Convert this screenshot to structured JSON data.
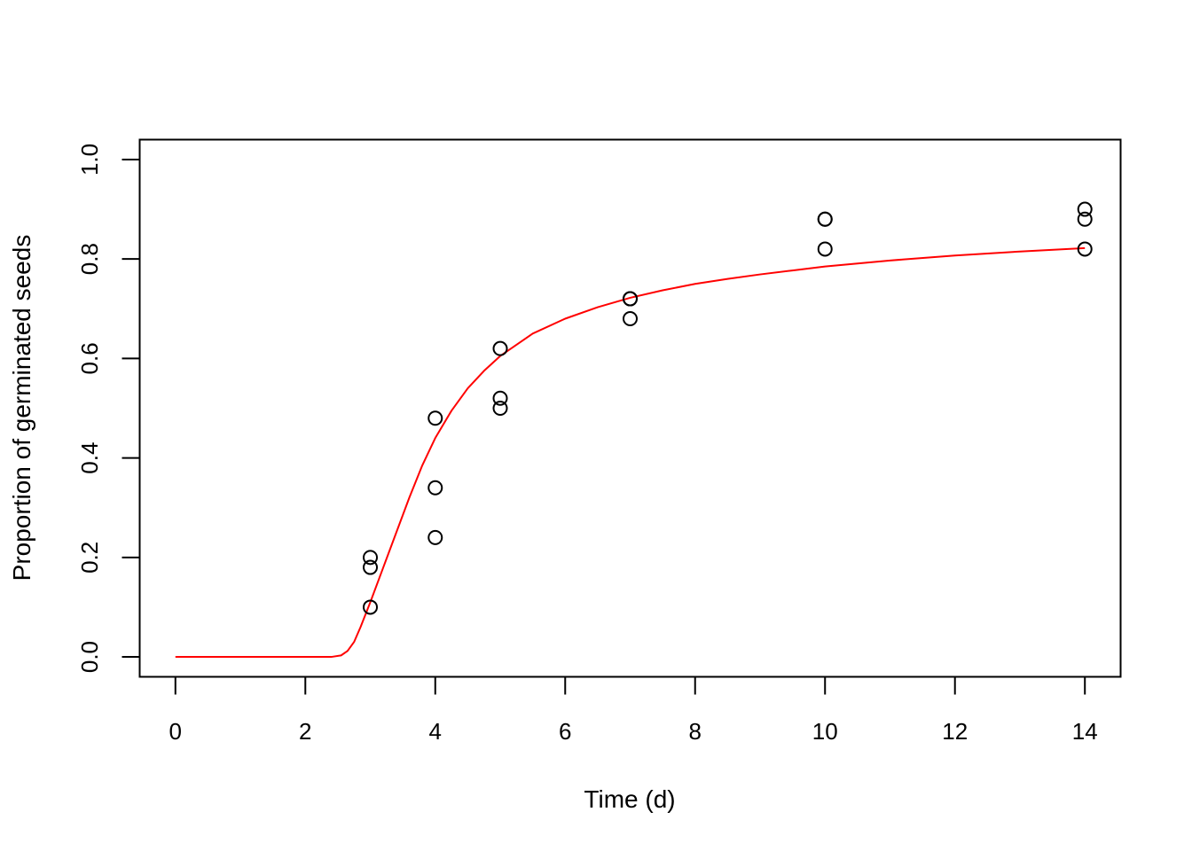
{
  "chart_data": {
    "type": "scatter",
    "title": "",
    "xlabel": "Time (d)",
    "ylabel": "Proportion of germinated seeds",
    "xlim": [
      -0.55,
      14.55
    ],
    "ylim": [
      -0.04,
      1.04
    ],
    "x_ticks": [
      0,
      2,
      4,
      6,
      8,
      10,
      12,
      14
    ],
    "x_tick_labels": [
      "0",
      "2",
      "4",
      "6",
      "8",
      "10",
      "12",
      "14"
    ],
    "y_ticks": [
      0.0,
      0.2,
      0.4,
      0.6,
      0.8,
      1.0
    ],
    "y_tick_labels": [
      "0.0",
      "0.2",
      "0.4",
      "0.6",
      "0.8",
      "1.0"
    ],
    "grid": false,
    "legend": "none",
    "series": [
      {
        "kind": "points",
        "marker": "open-circle",
        "color": "#000000",
        "points": [
          {
            "x": 3,
            "y": 0.1
          },
          {
            "x": 3,
            "y": 0.18
          },
          {
            "x": 3,
            "y": 0.2
          },
          {
            "x": 4,
            "y": 0.24
          },
          {
            "x": 4,
            "y": 0.34
          },
          {
            "x": 4,
            "y": 0.48
          },
          {
            "x": 5,
            "y": 0.5
          },
          {
            "x": 5,
            "y": 0.52
          },
          {
            "x": 5,
            "y": 0.62
          },
          {
            "x": 7,
            "y": 0.68
          },
          {
            "x": 7,
            "y": 0.72
          },
          {
            "x": 7,
            "y": 0.72
          },
          {
            "x": 10,
            "y": 0.82
          },
          {
            "x": 10,
            "y": 0.88
          },
          {
            "x": 10,
            "y": 0.88
          },
          {
            "x": 14,
            "y": 0.82
          },
          {
            "x": 14,
            "y": 0.88
          },
          {
            "x": 14,
            "y": 0.9
          }
        ]
      },
      {
        "kind": "fitted-curve",
        "color": "#ff0000",
        "points": [
          {
            "x": 0,
            "y": 0.0
          },
          {
            "x": 1,
            "y": 0.0
          },
          {
            "x": 2,
            "y": 0.0
          },
          {
            "x": 2.4,
            "y": 0.0
          },
          {
            "x": 2.55,
            "y": 0.003
          },
          {
            "x": 2.65,
            "y": 0.012
          },
          {
            "x": 2.75,
            "y": 0.03
          },
          {
            "x": 2.85,
            "y": 0.06
          },
          {
            "x": 3.0,
            "y": 0.11
          },
          {
            "x": 3.2,
            "y": 0.18
          },
          {
            "x": 3.4,
            "y": 0.25
          },
          {
            "x": 3.6,
            "y": 0.32
          },
          {
            "x": 3.8,
            "y": 0.385
          },
          {
            "x": 4.0,
            "y": 0.44
          },
          {
            "x": 4.25,
            "y": 0.495
          },
          {
            "x": 4.5,
            "y": 0.54
          },
          {
            "x": 4.75,
            "y": 0.575
          },
          {
            "x": 5.0,
            "y": 0.605
          },
          {
            "x": 5.5,
            "y": 0.65
          },
          {
            "x": 6.0,
            "y": 0.68
          },
          {
            "x": 6.5,
            "y": 0.703
          },
          {
            "x": 7.0,
            "y": 0.722
          },
          {
            "x": 7.5,
            "y": 0.737
          },
          {
            "x": 8.0,
            "y": 0.75
          },
          {
            "x": 8.5,
            "y": 0.76
          },
          {
            "x": 9.0,
            "y": 0.769
          },
          {
            "x": 9.5,
            "y": 0.777
          },
          {
            "x": 10.0,
            "y": 0.785
          },
          {
            "x": 11.0,
            "y": 0.797
          },
          {
            "x": 12.0,
            "y": 0.807
          },
          {
            "x": 13.0,
            "y": 0.815
          },
          {
            "x": 14.0,
            "y": 0.822
          }
        ]
      }
    ]
  }
}
